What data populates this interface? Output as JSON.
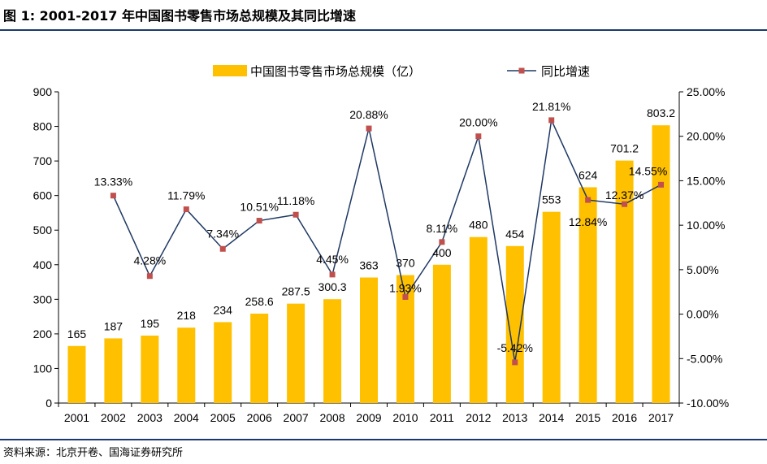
{
  "header": {
    "title": "图 1:  2001-2017 年中国图书零售市场总规模及其同比增速"
  },
  "footer": {
    "source": "资料来源：北京开卷、国海证券研究所"
  },
  "colors": {
    "bar": "#FFC000",
    "line": "#1F3864",
    "marker": "#C0504D",
    "rule": "#1a3a6b"
  },
  "chart_data": {
    "type": "bar+line",
    "categories": [
      "2001",
      "2002",
      "2003",
      "2004",
      "2005",
      "2006",
      "2007",
      "2008",
      "2009",
      "2010",
      "2011",
      "2012",
      "2013",
      "2014",
      "2015",
      "2016",
      "2017"
    ],
    "series": [
      {
        "name": "中国图书零售市场总规模（亿）",
        "type": "bar",
        "axis": "left",
        "values": [
          165,
          187,
          195,
          218,
          234,
          258.6,
          287.5,
          300.3,
          363,
          370,
          400,
          480,
          454,
          553,
          624,
          701.2,
          803.2
        ],
        "labels": [
          "165",
          "187",
          "195",
          "218",
          "234",
          "258.6",
          "287.5",
          "300.3",
          "363",
          "370",
          "400",
          "480",
          "454",
          "553",
          "624",
          "701.2",
          "803.2"
        ]
      },
      {
        "name": "同比增速",
        "type": "line",
        "axis": "right",
        "values": [
          null,
          13.33,
          4.28,
          11.79,
          7.34,
          10.51,
          11.18,
          4.45,
          20.88,
          1.93,
          8.11,
          20.0,
          -5.42,
          21.81,
          12.84,
          12.37,
          14.55
        ],
        "labels": [
          "",
          "13.33%",
          "4.28%",
          "11.79%",
          "7.34%",
          "10.51%",
          "11.18%",
          "4.45%",
          "20.88%",
          "1.93%",
          "8.11%",
          "20.00%",
          "-5.42%",
          "21.81%",
          "12.84%",
          "12.37%",
          "14.55%"
        ]
      }
    ],
    "y_left": {
      "min": 0,
      "max": 900,
      "ticks": [
        "0",
        "100",
        "200",
        "300",
        "400",
        "500",
        "600",
        "700",
        "800",
        "900"
      ]
    },
    "y_right": {
      "min": -10,
      "max": 25,
      "ticks": [
        "-10.00%",
        "-5.00%",
        "0.00%",
        "5.00%",
        "10.00%",
        "15.00%",
        "20.00%",
        "25.00%"
      ]
    },
    "legend_position": "top-center",
    "grid": false
  }
}
